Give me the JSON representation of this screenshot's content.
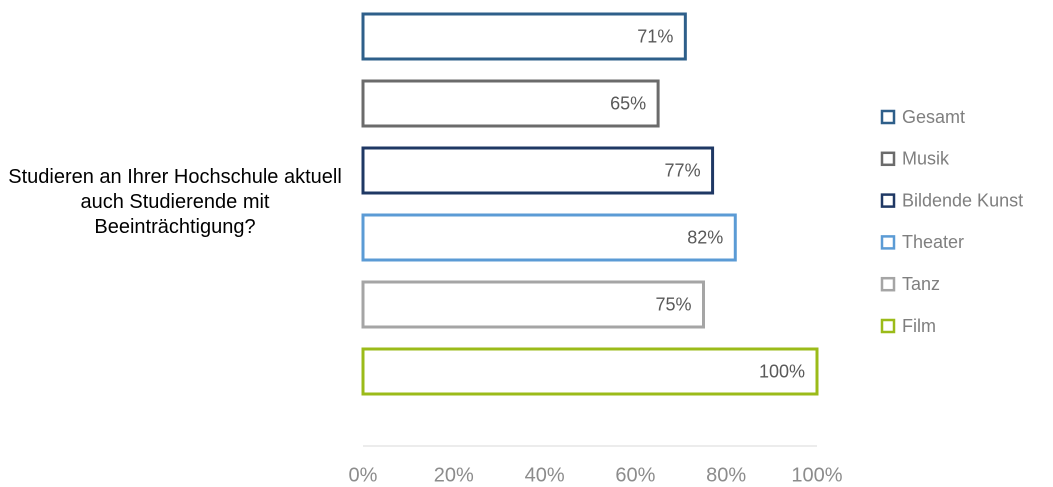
{
  "chart_data": {
    "type": "bar",
    "orientation": "horizontal",
    "categories": [
      "Studieren an Ihrer Hochschule aktuell auch Studierende mit Beeinträchtigung?"
    ],
    "series": [
      {
        "name": "Gesamt",
        "color": "#2e5f8a",
        "values": [
          71
        ],
        "value_labels": [
          "71%"
        ]
      },
      {
        "name": "Musik",
        "color": "#6b6b6b",
        "values": [
          65
        ],
        "value_labels": [
          "65%"
        ]
      },
      {
        "name": "Bildende Kunst",
        "color": "#1f3864",
        "values": [
          77
        ],
        "value_labels": [
          "77%"
        ]
      },
      {
        "name": "Theater",
        "color": "#5b9bd5",
        "values": [
          82
        ],
        "value_labels": [
          "82%"
        ]
      },
      {
        "name": "Tanz",
        "color": "#a5a5a5",
        "values": [
          75
        ],
        "value_labels": [
          "75%"
        ]
      },
      {
        "name": "Film",
        "color": "#9bbb19",
        "values": [
          100
        ],
        "value_labels": [
          "100%"
        ]
      }
    ],
    "xlim": [
      0,
      100
    ],
    "xticks": [
      {
        "value": 0,
        "label": "0%"
      },
      {
        "value": 20,
        "label": "20%"
      },
      {
        "value": 40,
        "label": "40%"
      },
      {
        "value": 60,
        "label": "60%"
      },
      {
        "value": 80,
        "label": "80%"
      },
      {
        "value": 100,
        "label": "100%"
      }
    ],
    "grid": false,
    "legend": "right"
  }
}
